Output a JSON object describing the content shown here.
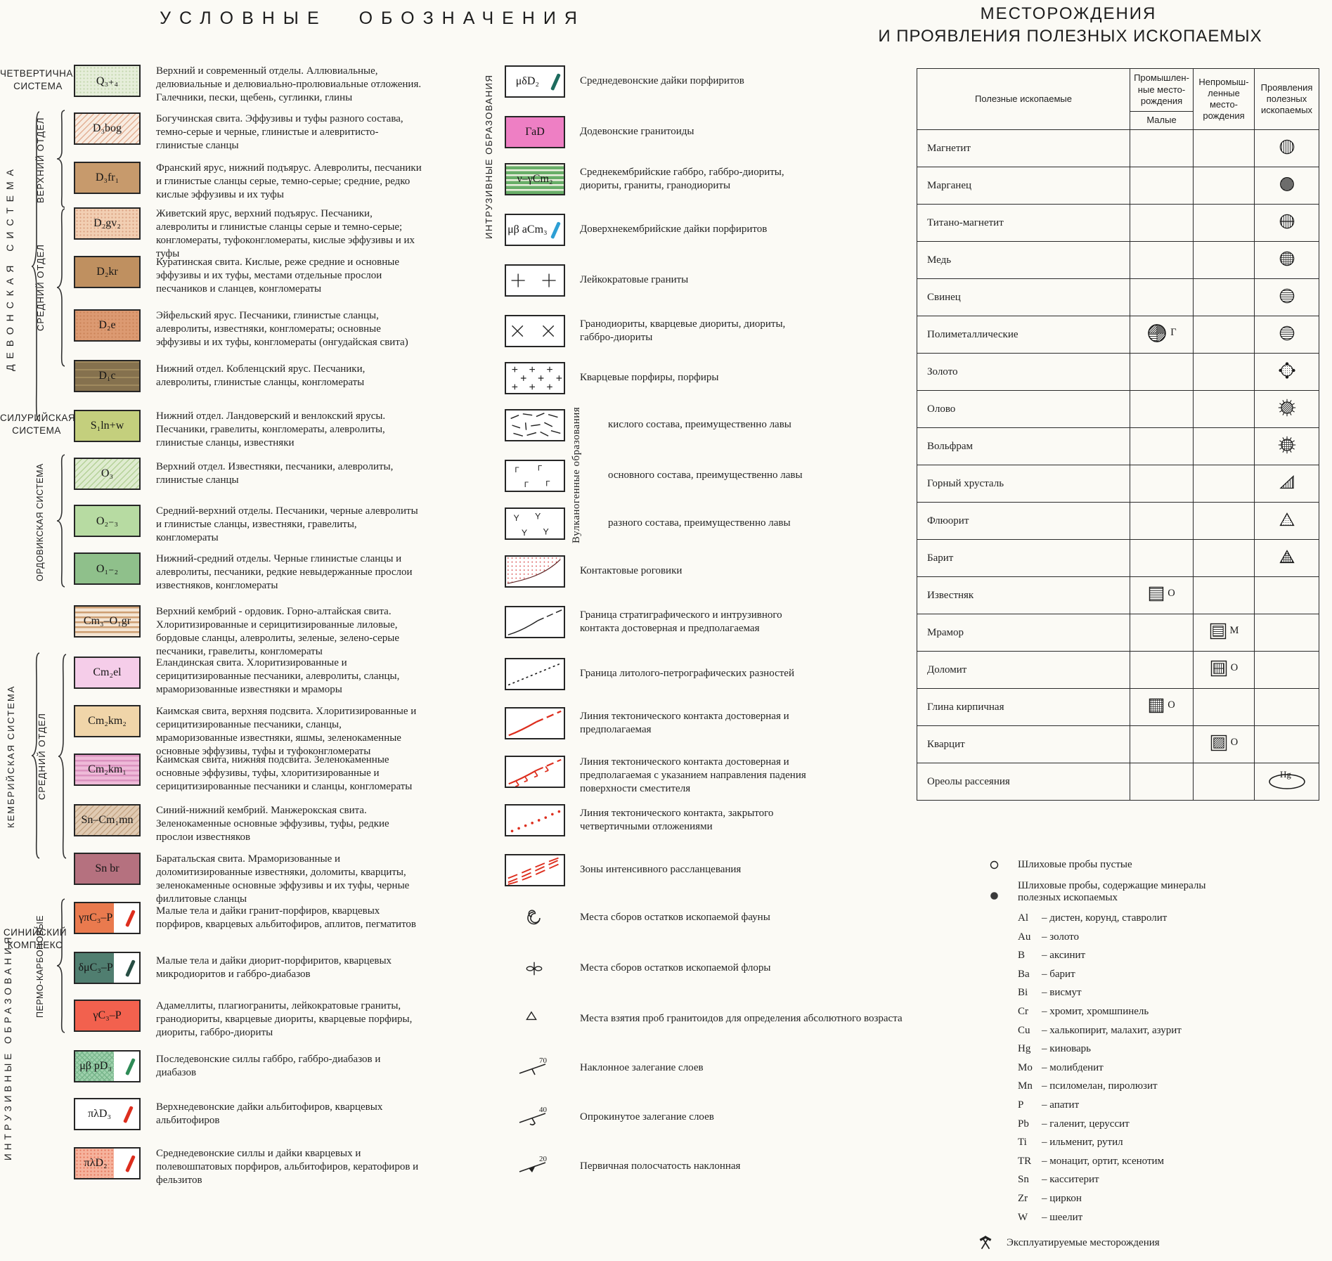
{
  "titles": {
    "left": "УСЛОВНЫЕ ОБОЗНАЧЕНИЯ",
    "right_line1": "МЕСТОРОЖДЕНИЯ",
    "right_line2": "И ПРОЯВЛЕНИЯ ПОЛЕЗНЫХ ИСКОПАЕМЫХ"
  },
  "groups": {
    "quaternary": "ЧЕТВЕРТИЧНАЯ\nСИСТЕМА",
    "devonian": "ДЕВОНСКАЯ СИСТЕМА",
    "upper_devonian": "ВЕРХНИЙ ОТДЕЛ",
    "middle_devonian": "СРЕДНИЙ ОТДЕЛ",
    "silurian": "СИЛУРИЙСКАЯ\nСИСТЕМА",
    "ordovician": "ОРДОВИКСКАЯ СИСТЕМА",
    "cambrian": "КЕМБРИЙСКАЯ СИСТЕМА",
    "middle_cambrian": "СРЕДНИЙ ОТДЕЛ",
    "sinian": "СИНИЙСКИЙ\nКОМПЛЕКС",
    "intrusive": "ИНТРУЗИВНЫЕ ОБРАЗОВАНИЯ",
    "permo_carbonic": "ПЕРМО-КАРБОНОВЫЕ",
    "mid_intrusive": "ИНТРУЗИВНЫЕ ОБРАЗОВАНИЯ",
    "volcanogenic": "Вулканогенные образования"
  },
  "left_rows": [
    {
      "code": "Q₃₊₄",
      "pattern": "dots",
      "bg": "#e6eeda",
      "fg": "#c2d5ac",
      "desc": "Верхний и современный отделы. Аллювиальные, делювиальные и делювиально-пролювиальные отложения. Галечники, пески, щебень, суглинки, глины"
    },
    {
      "code": "D₃bog",
      "pattern": "hatch",
      "bg": "#f8ece1",
      "fg": "#e3b094",
      "desc": "Богучинская свита. Эффузивы и туфы разного состава, темно-серые и черные, глинистые и алевритисто-глинистые сланцы"
    },
    {
      "code": "D₃fr₁",
      "pattern": "plain",
      "bg": "#c79a6c",
      "fg": "",
      "desc": "Франский ярус, нижний подъярус. Алевролиты, песчаники и глинистые сланцы серые, темно-серые; средние, редко кислые эффузивы и их туфы"
    },
    {
      "code": "D₂gv₂",
      "pattern": "dots",
      "bg": "#f2cfb3",
      "fg": "#d9a081",
      "desc": "Живетский ярус, верхний подъярус. Песчаники, алевролиты и глинистые сланцы серые и темно-серые; конгломераты, туфоконгломераты, кислые эффузивы и их туфы"
    },
    {
      "code": "D₂kr",
      "pattern": "plain",
      "bg": "#bf9060",
      "fg": "",
      "desc": "Куратинская свита. Кислые, реже средние и основные эффузивы и их туфы, местами отдельные прослои песчаников и сланцев, конгломераты"
    },
    {
      "code": "D₂e",
      "pattern": "dots",
      "bg": "#dc9a72",
      "fg": "#ca8157",
      "desc": "Эйфельский ярус. Песчаники, глинистые сланцы, алевролиты, известняки, конгломераты; основные эффузивы и их туфы, конгломераты (онгудайская свита)"
    },
    {
      "code": "D₁c",
      "pattern": "hstripes-soft",
      "bg": "#85714e",
      "fg": "#a08a5e",
      "desc": "Нижний отдел. Кобленцский ярус. Песчаники, алевролиты, глинистые сланцы, конгломераты"
    },
    {
      "code": "S₁ln+w",
      "pattern": "plain",
      "bg": "#c4cf7d",
      "fg": "",
      "desc": "Нижний отдел. Ландоверский и венлокский ярусы. Песчаники, гравелиты, конгломераты, алевролиты, глинистые сланцы, известняки"
    },
    {
      "code": "O₃",
      "pattern": "hatch",
      "bg": "#dfecd0",
      "fg": "#b5d198",
      "desc": "Верхний отдел. Известняки, песчаники, алевролиты, глинистые сланцы"
    },
    {
      "code": "O₂₋₃",
      "pattern": "plain",
      "bg": "#b7dba2",
      "fg": "",
      "desc": "Средний-верхний отделы. Песчаники, черные алевролиты и глинистые сланцы, известняки, гравелиты, конгломераты"
    },
    {
      "code": "O₁₋₂",
      "pattern": "plain",
      "bg": "#8fc08b",
      "fg": "",
      "desc": "Нижний-средний отделы. Черные глинистые сланцы и алевролиты, песчаники, редкие невыдержанные прослои известняков, конгломераты"
    },
    {
      "code": "Cm₃–O₁gr",
      "pattern": "hstripes",
      "bg": "#f4e5d4",
      "fg": "#cd9e72",
      "desc": "Верхний кембрий - ордовик. Горно-алтайская свита. Хлоритизированные и серицитизированные лиловые, бордовые сланцы, алевролиты, зеленые, зелено-серые песчаники, гравелиты, конгломераты"
    },
    {
      "code": "Cm₂el",
      "pattern": "plain",
      "bg": "#f5cde9",
      "fg": "",
      "desc": "Еландинская свита. Хлоритизированные и серицитизированные песчаники, алевролиты, сланцы, мраморизованные известняки и мраморы"
    },
    {
      "code": "Cm₂km₂",
      "pattern": "plain",
      "bg": "#f0d5a9",
      "fg": "",
      "desc": "Каимская свита, верхняя подсвита. Хлоритизированные и серицитизированные песчаники, сланцы, мраморизованные известняки, яшмы, зеленокаменные основные эффузивы, туфы и туфоконгломераты"
    },
    {
      "code": "Cm₂km₁",
      "pattern": "hstripes",
      "bg": "#eebad8",
      "fg": "#db92bf",
      "desc": "Каимская свита, нижняя подсвита. Зеленокаменные основные эффузивы, туфы, хлоритизированные и серицитизированные песчаники и сланцы, конгломераты"
    },
    {
      "code": "Sn–Cm₁mn",
      "pattern": "hatch",
      "bg": "#e0cab2",
      "fg": "#c5a686",
      "desc": "Синий-нижний кембрий. Манжерокская свита. Зеленокаменные основные эффузивы, туфы, редкие прослои известняков"
    },
    {
      "code": "Sn br",
      "pattern": "plain",
      "bg": "#b5717f",
      "fg": "",
      "desc": "Баратальская свита. Мраморизованные и доломитизированные известняки, доломиты, кварциты, зеленокаменные основные эффузивы и их туфы, черные филлитовые сланцы"
    },
    {
      "code": "γπC₃–P",
      "pattern": "plain",
      "bg": "#e97a4e",
      "fg": "",
      "split": true,
      "slash": "#dd2e1e",
      "desc": "Малые тела и дайки гранит-порфиров, кварцевых порфиров, кварцевых альбитофиров, аплитов, пегматитов"
    },
    {
      "code": "δμC₃–P",
      "pattern": "plain",
      "bg": "#507e70",
      "fg": "",
      "split": true,
      "slash": "#274e44",
      "desc": "Малые тела и дайки диорит-порфиритов, кварцевых микродиоритов и габбро-диабазов"
    },
    {
      "code": "γC₃–P",
      "pattern": "plain",
      "bg": "#f2614e",
      "fg": "",
      "desc": "Адамеллиты, плагиограниты, лейкократовые граниты, гранодиориты, кварцевые диориты, кварцевые порфиры, диориты, габбро-диориты"
    },
    {
      "code": "μβ pD₃",
      "pattern": "cross",
      "bg": "#9ed0ac",
      "fg": "#75b489",
      "split": true,
      "slash": "#2e8b57",
      "desc": "Последевонские силлы габбро, габбро-диабазов и диабазов"
    },
    {
      "code": "πλD₃",
      "pattern": "plain",
      "bg": "#ffffff",
      "fg": "",
      "slashonly": true,
      "slash": "#dd2e1e",
      "desc": "Верхнедевонские дайки альбитофиров, кварцевых альбитофиров"
    },
    {
      "code": "πλD₂",
      "pattern": "dots",
      "bg": "#f6b39d",
      "fg": "#e4765a",
      "split": true,
      "slash": "#dd2e1e",
      "desc": "Среднедевонские силлы и дайки кварцевых и полевошпатовых порфиров, альбитофиров, кератофиров и фельзитов"
    }
  ],
  "middle_rows": [
    {
      "kind": "label-slash",
      "code": "μδD₂",
      "slash": "#1d6b5e",
      "desc": "Среднедевонские дайки порфиритов"
    },
    {
      "kind": "plain",
      "code": "ГаD",
      "bg": "#ee7fc4",
      "desc": "Додевонские гранитоиды"
    },
    {
      "kind": "stripes",
      "code": "ν–γCm₂",
      "bg": "#68ae68",
      "fg": "#eef0e0",
      "desc": "Среднекембрийские габбро, габбро-диориты, диориты, граниты, гранодиориты"
    },
    {
      "kind": "label-slash",
      "code": "μβ аCm₃",
      "slash": "#2e9fd4",
      "desc": "Доверхнекембрийские дайки порфиритов"
    },
    {
      "kind": "plus2",
      "desc": "Лейкократовые граниты"
    },
    {
      "kind": "x2",
      "desc": "Гранодиориты, кварцевые диориты, диориты, габбро-диориты"
    },
    {
      "kind": "plusSmall",
      "desc": "Кварцевые порфиры, порфиры"
    },
    {
      "kind": "dashes",
      "desc": "кислого состава, преимущественно лавы"
    },
    {
      "kind": "gammas",
      "desc": "основного состава, преимущественно лавы"
    },
    {
      "kind": "ys",
      "desc": "разного состава, преимущественно лавы"
    },
    {
      "kind": "hornfels",
      "desc": "Контактовые роговики"
    },
    {
      "kind": "lineBlackDash",
      "desc": "Граница стратиграфического и интрузивного контакта достоверная и предполагаемая"
    },
    {
      "kind": "dottedBlack",
      "desc": "Граница литолого-петрографических разностей"
    },
    {
      "kind": "lineRedDash",
      "desc": "Линия тектонического контакта достоверная и предполагаемая"
    },
    {
      "kind": "lineRedTicks",
      "desc": "Линия тектонического контакта достоверная и предполагаемая с указанием направления падения поверхности сместителя"
    },
    {
      "kind": "dottedRed",
      "desc": "Линия тектонического контакта, закрытого четвертичными отложениями"
    },
    {
      "kind": "redMultiDash",
      "desc": "Зоны интенсивного рассланцевания"
    },
    {
      "kind": "spiral",
      "desc": "Места сборов остатков ископаемой фауны"
    },
    {
      "kind": "flora",
      "desc": "Места сборов остатков ископаемой флоры"
    },
    {
      "kind": "triangleSmall",
      "desc": "Места взятия проб гранитоидов для определения абсолютного возраста"
    },
    {
      "kind": "dip",
      "value": "70",
      "desc": "Наклонное залегание слоев"
    },
    {
      "kind": "dipOverturned",
      "value": "40",
      "desc": "Опрокинутое залегание слоев"
    },
    {
      "kind": "banding",
      "value": "20",
      "desc": "Первичная полосчатость наклонная"
    }
  ],
  "table": {
    "header_col1": "Полезные ископаемые",
    "header_col2": "Промышлен-\nные место-\nрождения",
    "header_col2_sub": "Малые",
    "header_col3": "Непромыш-\nленные место-\nрождения",
    "header_col4": "Проявления\nполезных\nископаемых",
    "rows": [
      {
        "name": "Магнетит",
        "col": 3,
        "shape": "circle-vlines",
        "letter": ""
      },
      {
        "name": "Марганец",
        "col": 3,
        "shape": "circle-dense",
        "letter": ""
      },
      {
        "name": "Титано-магнетит",
        "col": 3,
        "shape": "circle-vlines-band",
        "letter": ""
      },
      {
        "name": "Медь",
        "col": 3,
        "shape": "circle-grid",
        "letter": ""
      },
      {
        "name": "Свинец",
        "col": 3,
        "shape": "circle-hlines",
        "letter": ""
      },
      {
        "name": "Полиметаллические",
        "col": 1,
        "shape": "circle-poly-large",
        "letter": "Г",
        "col2": 3,
        "shape2": "circle-hlines",
        "letter2": ""
      },
      {
        "name": "Золото",
        "col": 3,
        "shape": "circle-gold",
        "letter": ""
      },
      {
        "name": "Олово",
        "col": 3,
        "shape": "circle-tin",
        "letter": ""
      },
      {
        "name": "Вольфрам",
        "col": 3,
        "shape": "circle-wolfram",
        "letter": ""
      },
      {
        "name": "Горный хрусталь",
        "col": 3,
        "shape": "rtriangle-vlines",
        "letter": ""
      },
      {
        "name": "Флюорит",
        "col": 3,
        "shape": "triangle-dots",
        "letter": ""
      },
      {
        "name": "Барит",
        "col": 3,
        "shape": "triangle-grid",
        "letter": ""
      },
      {
        "name": "Известняк",
        "col": 1,
        "shape": "square-hlines",
        "letter": "О"
      },
      {
        "name": "Мрамор",
        "col": 2,
        "shape": "square2-hlines",
        "letter": "М"
      },
      {
        "name": "Доломит",
        "col": 2,
        "shape": "square2-vlines",
        "letter": "О"
      },
      {
        "name": "Глина кирпичная",
        "col": 1,
        "shape": "square-grid",
        "letter": "О"
      },
      {
        "name": "Кварцит",
        "col": 2,
        "shape": "square2-diag",
        "letter": "О"
      },
      {
        "name": "Ореолы рассеяния",
        "col": 3,
        "shape": "ellipse-hg",
        "letter": "",
        "ellipse_label": "Hg"
      }
    ]
  },
  "samples": [
    {
      "symbol": "open-circle",
      "text": "Шлиховые пробы пустые"
    },
    {
      "symbol": "filled-circle",
      "text": "Шлиховые пробы, содержащие минералы\nполезных ископаемых"
    }
  ],
  "abbreviations": [
    {
      "code": "Al",
      "desc": "дистен, корунд, ставролит"
    },
    {
      "code": "Au",
      "desc": "золото"
    },
    {
      "code": "B",
      "desc": "аксинит"
    },
    {
      "code": "Ba",
      "desc": "барит"
    },
    {
      "code": "Bi",
      "desc": "висмут"
    },
    {
      "code": "Cr",
      "desc": "хромит, хромшпинель"
    },
    {
      "code": "Cu",
      "desc": "халькопирит, малахит, азурит"
    },
    {
      "code": "Hg",
      "desc": "киноварь"
    },
    {
      "code": "Mo",
      "desc": "молибденит"
    },
    {
      "code": "Mn",
      "desc": "псиломелан, пиролюзит"
    },
    {
      "code": "P",
      "desc": "апатит"
    },
    {
      "code": "Pb",
      "desc": "галенит, церуссит"
    },
    {
      "code": "Ti",
      "desc": "ильменит, рутил"
    },
    {
      "code": "TR",
      "desc": "монацит, ортит, ксенотим"
    },
    {
      "code": "Sn",
      "desc": "касситерит"
    },
    {
      "code": "Zr",
      "desc": "циркон"
    },
    {
      "code": "W",
      "desc": "шеелит"
    }
  ],
  "exploited": {
    "text": "Эксплуатируемые месторождения"
  }
}
